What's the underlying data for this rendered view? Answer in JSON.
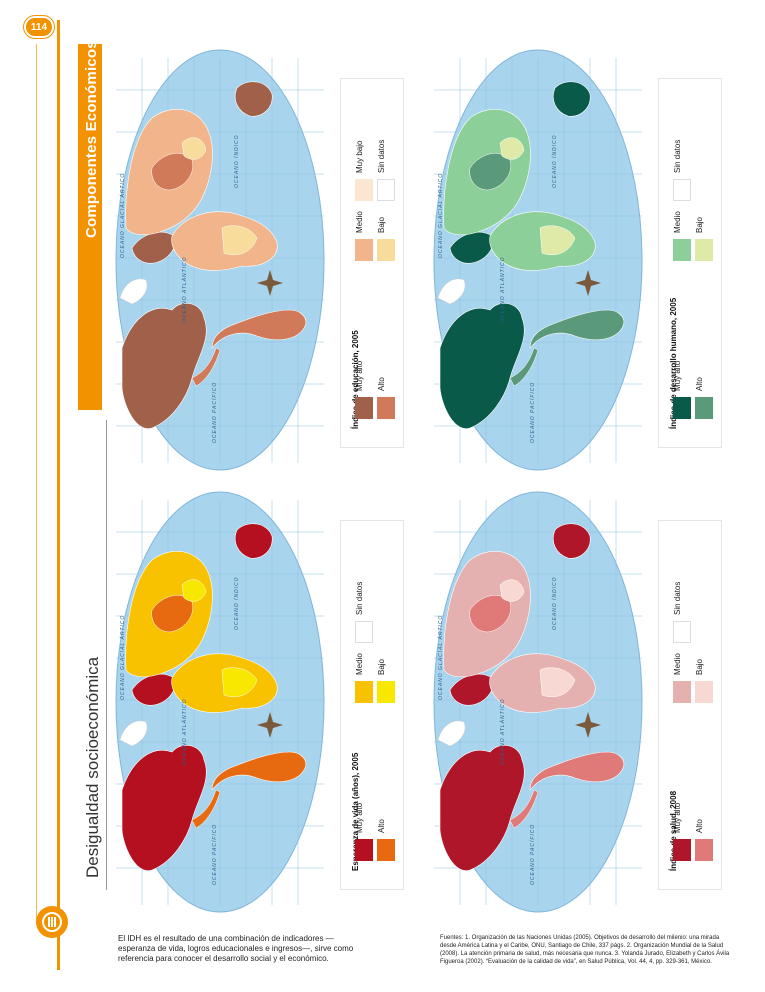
{
  "page_number": "114",
  "section_tab": "Componentes Económicos",
  "page_title": "Desigualdad socioeconómica",
  "oceans": {
    "pacifico": "OCEANO PACÍFICO",
    "atlantico": "OCEANO ATLÁNTICO",
    "indico": "OCEANO ÍNDICO",
    "glacial": "OCEANO GLACIAL ÁRTICO"
  },
  "maps": [
    {
      "id": "educacion",
      "legend_title": "Índice de educación, 2005",
      "items": [
        {
          "label": "Muy alto",
          "color": "#a0604a"
        },
        {
          "label": "Alto",
          "color": "#d07a5a"
        },
        {
          "label": "Medio",
          "color": "#f2b48a"
        },
        {
          "label": "Bajo",
          "color": "#f7dc9c"
        },
        {
          "label": "Muy bajo",
          "color": "#fbe6d2"
        },
        {
          "label": "Sin datos",
          "color": "#ffffff"
        }
      ]
    },
    {
      "id": "vida",
      "legend_title": "Esperanza de vida (años), 2005",
      "items": [
        {
          "label": "Muy alto",
          "color": "#b5101f"
        },
        {
          "label": "Alto",
          "color": "#e86a10"
        },
        {
          "label": "Medio",
          "color": "#f8c200"
        },
        {
          "label": "Bajo",
          "color": "#f8e800"
        },
        {
          "label": "Sin datos",
          "color": "#ffffff"
        }
      ]
    },
    {
      "id": "desarrollo",
      "legend_title": "Índice de desarrollo humano, 2005",
      "items": [
        {
          "label": "Muy alto",
          "color": "#0a5a4a"
        },
        {
          "label": "Alto",
          "color": "#5a9a7a"
        },
        {
          "label": "Medio",
          "color": "#8ccf98"
        },
        {
          "label": "Bajo",
          "color": "#dfeaa8"
        },
        {
          "label": "Sin datos",
          "color": "#ffffff"
        }
      ]
    },
    {
      "id": "salud",
      "legend_title": "Índice de salud, 2008",
      "items": [
        {
          "label": "Muy alto",
          "color": "#b0162a"
        },
        {
          "label": "Alto",
          "color": "#e07a78"
        },
        {
          "label": "Medio",
          "color": "#e5b0b0"
        },
        {
          "label": "Bajo",
          "color": "#f8d8d2"
        },
        {
          "label": "Sin datos",
          "color": "#ffffff"
        }
      ]
    }
  ],
  "footer_left": "El IDH es el resultado de una combinación de indicadores —esperanza de vida, logros educacionales e ingresos—, sirve como referencia para conocer el desarrollo social y el económico.",
  "footer_right": "Fuentes: 1. Organización de las Naciones Unidas (2005). Objetivos de desarrollo del milenio: una mirada desde América Latina y el Caribe, ONU, Santiago de Chile, 337 págs. 2. Organización Mundial de la Salud (2008). La atención primaria de salud, más necesaria que nunca. 3. Yolanda Jurado, Elizabeth y Carlos Ávila Figueroa (2002). “Evaluación de la calidad de vida”, en Salud Pública, Vol. 44, 4, pp. 329-361, México."
}
